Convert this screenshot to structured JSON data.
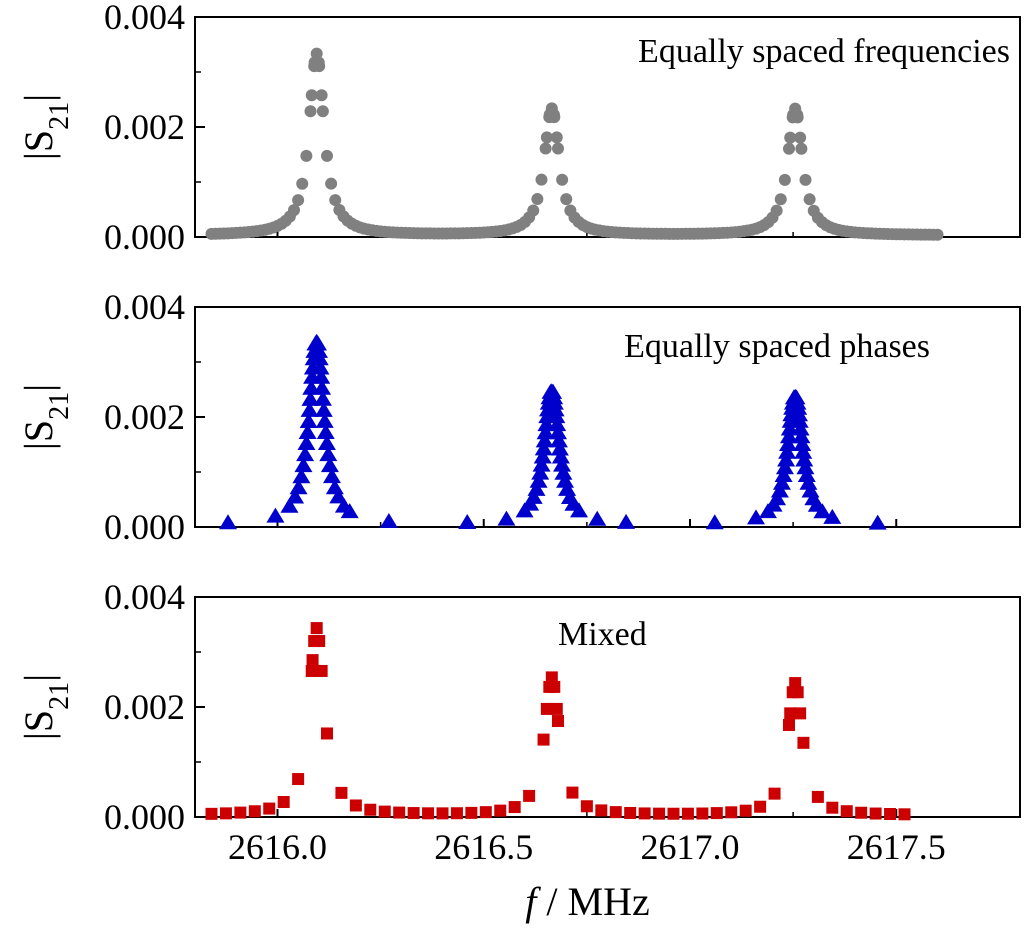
{
  "chart_data": [
    {
      "type": "scatter",
      "annotation": "Equally spaced frequencies",
      "ylabel": "|S21|",
      "ylabel_main": "S",
      "ylabel_sub": "21",
      "xlim": [
        2615.8,
        2617.8
      ],
      "ylim": [
        0,
        0.004
      ],
      "yticks": [
        0.0,
        0.002,
        0.004
      ],
      "ytick_labels": [
        "0.000",
        "0.002",
        "0.004"
      ],
      "marker": "circle",
      "color": "#808080",
      "series": [
        {
          "x_start": 2615.84,
          "x_end": 2617.6,
          "step": 0.01,
          "peaks": [
            2616.095,
            2616.665,
            2617.255
          ],
          "amps": [
            0.0033,
            0.0023,
            0.0023
          ],
          "gamma": 0.022,
          "baseline": 3e-05
        }
      ]
    },
    {
      "type": "scatter",
      "annotation": "Equally spaced phases",
      "ylabel": "|S21|",
      "ylabel_main": "S",
      "ylabel_sub": "21",
      "xlim": [
        2615.8,
        2617.8
      ],
      "ylim": [
        0,
        0.004
      ],
      "yticks": [
        0.0,
        0.002,
        0.004
      ],
      "ytick_labels": [
        "0.000",
        "0.002",
        "0.004"
      ],
      "marker": "triangle",
      "color": "#0000CC",
      "series": [
        {
          "peaks": [
            2616.095,
            2616.665,
            2617.255
          ],
          "amps": [
            0.00335,
            0.00245,
            0.00235
          ],
          "gamma": 0.022,
          "baseline": 3e-05,
          "far_points": [
            2615.88,
            2615.995,
            2616.175,
            2616.27,
            2616.46,
            2616.555,
            2616.775,
            2616.845,
            2617.06,
            2617.16,
            2617.345,
            2617.455
          ]
        }
      ]
    },
    {
      "type": "scatter",
      "annotation": "Mixed",
      "ylabel": "|S21|",
      "ylabel_main": "S",
      "ylabel_sub": "21",
      "xlabel": "f / MHz",
      "xlabel_italic": "f",
      "xlabel_rest": " / MHz",
      "xlim": [
        2615.8,
        2617.8
      ],
      "ylim": [
        0,
        0.004
      ],
      "yticks": [
        0.0,
        0.002,
        0.004
      ],
      "ytick_labels": [
        "0.000",
        "0.002",
        "0.004"
      ],
      "xticks": [
        2616.0,
        2616.5,
        2617.0,
        2617.5
      ],
      "xtick_labels": [
        "2616.0",
        "2616.5",
        "2617.0",
        "2617.5"
      ],
      "marker": "square",
      "color": "#CC0000",
      "series": [
        {
          "x_start": 2615.84,
          "x_end": 2617.54,
          "step": 0.035,
          "peaks": [
            2616.095,
            2616.665,
            2617.255
          ],
          "amps": [
            0.0034,
            0.0025,
            0.0024
          ],
          "gamma": 0.022,
          "baseline": 3e-05
        }
      ]
    }
  ]
}
